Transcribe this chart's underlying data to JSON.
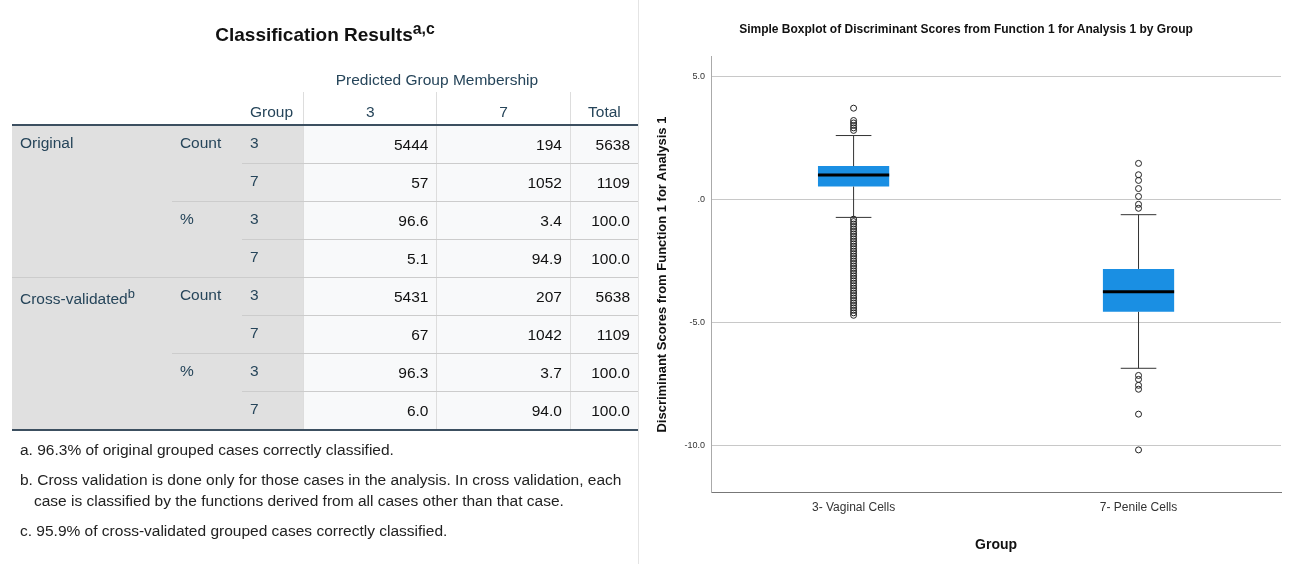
{
  "chart_data": [
    {
      "type": "other",
      "title": "Classification Results$^{a,c}$",
      "subtitle": "Predicted Group Membership",
      "categories": [
        null,
        null,
        "Group",
        "3",
        "7",
        "Total"
      ],
      "cell_labels": [
        [
          "Original",
          "Count",
          "3",
          "5444",
          "194",
          "5638"
        ],
        [
          null,
          null,
          "7",
          "57",
          "1052",
          "1109"
        ],
        [
          null,
          "%",
          "3",
          "96.6",
          "3.4",
          "100.0"
        ],
        [
          null,
          null,
          "7",
          "5.1",
          "94.9",
          "100.0"
        ],
        [
          "Cross-validated$^{b}$",
          "Count",
          "3",
          "5431",
          "207",
          "5638"
        ],
        [
          null,
          null,
          "7",
          "67",
          "1042",
          "1109"
        ],
        [
          null,
          "%",
          "3",
          "96.3",
          "3.7",
          "100.0"
        ],
        [
          null,
          null,
          "7",
          "6.0",
          "94.0",
          "100.0"
        ]
      ],
      "annotations": [
        "a. 96.3% of original grouped cases correctly classified.",
        "b. Cross validation is done only for those cases in the analysis. In cross validation, each case is classified by the functions derived from all cases other than that case.",
        "c. 95.9% of cross-validated grouped cases correctly classified."
      ]
    },
    {
      "type": "box",
      "title": "Simple Boxplot of Discriminant Scores from Function 1 for Analysis 1 by Group",
      "xlabel": "Group",
      "ylabel": "Discriminant Scores from Function 1 for Analysis 1",
      "categories": [
        "3- Vaginal Cells",
        "7- Penile Cells"
      ],
      "color": "#1a8fe3",
      "boxes": [
        {
          "low": -0.73,
          "q1": 0.52,
          "median": 0.99,
          "q3": 1.35,
          "high": 2.59,
          "outliers": [
            3.7,
            3.2,
            3.1,
            3.0,
            2.9,
            2.8,
            -0.8,
            -0.9,
            -1.0,
            -1.1,
            -1.2,
            -1.3,
            -1.4,
            -1.5,
            -1.6,
            -1.7,
            -1.8,
            -1.9,
            -2.0,
            -2.1,
            -2.2,
            -2.3,
            -2.4,
            -2.5,
            -2.6,
            -2.7,
            -2.8,
            -2.9,
            -3.0,
            -3.1,
            -3.2,
            -3.3,
            -3.4,
            -3.5,
            -3.6,
            -3.7,
            -3.8,
            -3.9,
            -4.0,
            -4.1,
            -4.2,
            -4.3,
            -4.4,
            -4.5,
            -4.6,
            -4.7
          ]
        },
        {
          "low": -6.85,
          "q1": -4.56,
          "median": -3.75,
          "q3": -2.82,
          "high": -0.62,
          "outliers": [
            1.46,
            1.0,
            0.77,
            0.44,
            0.12,
            -0.2,
            -0.36,
            -7.14,
            -7.3,
            -7.54,
            -7.7,
            -8.71,
            -10.16
          ]
        }
      ],
      "ylim": [
        -11.9,
        5.8
      ],
      "yticks": [
        {
          "value": 5,
          "label": "5.0"
        },
        {
          "value": 0,
          "label": ".0"
        },
        {
          "value": -5,
          "label": "-5.0"
        },
        {
          "value": -10,
          "label": "-10.0"
        }
      ],
      "grid": "y",
      "legend": false,
      "marker": "circle"
    }
  ]
}
